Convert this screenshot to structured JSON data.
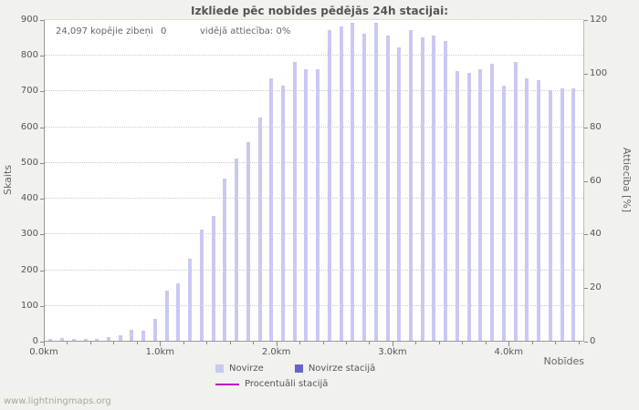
{
  "title": "Izkliede pēc nobīdes pēdējās 24h stacijai:",
  "annotation": {
    "total_label": "24,097 kopējie zibeņi",
    "station_count": "0",
    "ratio_label": "vidējā attiecība: 0%"
  },
  "watermark": "www.lightningmaps.org",
  "axes": {
    "y_left": {
      "label": "Skaits",
      "min": 0,
      "max": 900,
      "step": 100
    },
    "y_right": {
      "label": "Attiecība [%]",
      "min": 0,
      "max": 120,
      "step": 20
    },
    "x": {
      "label": "Nobīdes",
      "min": 0,
      "max": 4.65,
      "major_tick_km": [
        0,
        1,
        2,
        3,
        4
      ],
      "tick_labels": [
        "0.0km",
        "1.0km",
        "2.0km",
        "3.0km",
        "4.0km"
      ],
      "minor_tick_step_km": 0.2
    }
  },
  "legend": {
    "items": [
      {
        "label": "Novirze",
        "color": "#c9c9f2",
        "type": "box"
      },
      {
        "label": "Novirze stacijā",
        "color": "#6565cc",
        "type": "box"
      },
      {
        "label": "Procentuāli stacijā",
        "color": "#c000c0",
        "type": "line"
      }
    ]
  },
  "chart_data": {
    "type": "bar",
    "title": "Izkliede pēc nobīdes pēdējās 24h stacijai:",
    "xlabel": "Nobīdes",
    "ylabel_left": "Skaits",
    "ylabel_right": "Attiecība [%]",
    "ylim_left": [
      0,
      900
    ],
    "ylim_right": [
      0,
      120
    ],
    "xlim_km": [
      0,
      4.65
    ],
    "grid": true,
    "legend_position": "bottom",
    "x_km": [
      0.05,
      0.15,
      0.25,
      0.35,
      0.45,
      0.55,
      0.65,
      0.75,
      0.85,
      0.95,
      1.05,
      1.15,
      1.25,
      1.35,
      1.45,
      1.55,
      1.65,
      1.75,
      1.85,
      1.95,
      2.05,
      2.15,
      2.25,
      2.35,
      2.45,
      2.55,
      2.65,
      2.75,
      2.85,
      2.95,
      3.05,
      3.15,
      3.25,
      3.35,
      3.45,
      3.55,
      3.65,
      3.75,
      3.85,
      3.95,
      4.05,
      4.15,
      4.25,
      4.35,
      4.45,
      4.55
    ],
    "series": [
      {
        "name": "Novirze",
        "values": [
          5,
          8,
          5,
          4,
          4,
          10,
          15,
          30,
          28,
          60,
          140,
          160,
          230,
          310,
          350,
          455,
          510,
          555,
          625,
          735,
          715,
          780,
          760,
          760,
          870,
          880,
          890,
          860,
          890,
          855,
          820,
          870,
          850,
          855,
          840,
          755,
          750,
          760,
          775,
          715,
          780,
          735,
          730,
          700,
          705,
          705
        ]
      },
      {
        "name": "Novirze stacijā",
        "values": [
          0,
          0,
          0,
          0,
          0,
          0,
          0,
          0,
          0,
          0,
          0,
          0,
          0,
          0,
          0,
          0,
          0,
          0,
          0,
          0,
          0,
          0,
          0,
          0,
          0,
          0,
          0,
          0,
          0,
          0,
          0,
          0,
          0,
          0,
          0,
          0,
          0,
          0,
          0,
          0,
          0,
          0,
          0,
          0,
          0,
          0
        ]
      },
      {
        "name": "Procentuāli stacijā (%)",
        "values": [
          0,
          0,
          0,
          0,
          0,
          0,
          0,
          0,
          0,
          0,
          0,
          0,
          0,
          0,
          0,
          0,
          0,
          0,
          0,
          0,
          0,
          0,
          0,
          0,
          0,
          0,
          0,
          0,
          0,
          0,
          0,
          0,
          0,
          0,
          0,
          0,
          0,
          0,
          0,
          0,
          0,
          0,
          0,
          0,
          0,
          0
        ]
      }
    ]
  }
}
